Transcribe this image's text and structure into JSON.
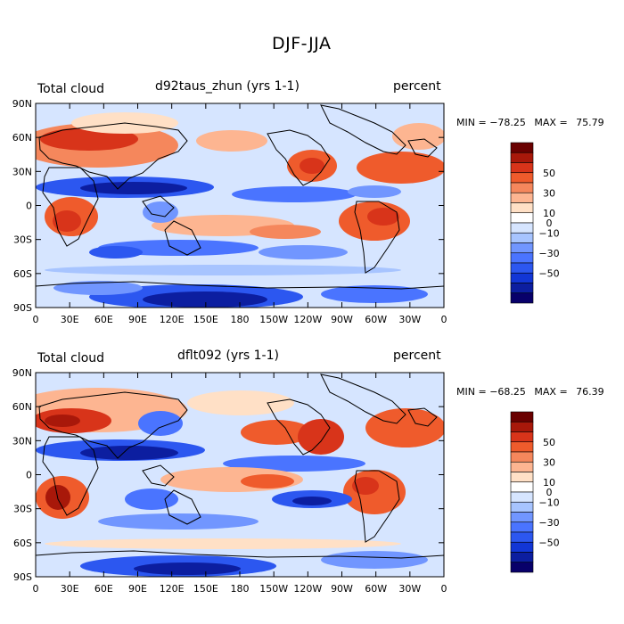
{
  "figure": {
    "title": "DJF-JJA"
  },
  "colorbar_scale": {
    "colors": [
      "#08006a",
      "#0c1ea0",
      "#1236d6",
      "#2c57f0",
      "#4a74ff",
      "#7196ff",
      "#a7c4ff",
      "#d6e5ff",
      "#ffffff",
      "#ffe0c6",
      "#fdb591",
      "#f5875c",
      "#ef5b2c",
      "#d8341a",
      "#a8180a",
      "#6a0000"
    ],
    "labels": [
      "50",
      "30",
      "10",
      "0",
      "−10",
      "−30",
      "−50"
    ],
    "label_values": [
      50,
      30,
      10,
      0,
      -10,
      -30,
      -50
    ],
    "range": [
      -80,
      80
    ]
  },
  "panels": [
    {
      "label_left": "Total cloud",
      "label_center": "d92taus_zhun (yrs 1-1)",
      "label_right": "percent",
      "min_label": "MIN =",
      "min_value": "−78.25",
      "max_label": "MAX =",
      "max_value": "75.79",
      "lat_ticks": [
        "90N",
        "60N",
        "30N",
        "0",
        "30S",
        "60S",
        "90S"
      ],
      "lon_ticks": [
        "0",
        "30E",
        "60E",
        "90E",
        "120E",
        "150E",
        "180",
        "150W",
        "120W",
        "90W",
        "60W",
        "30W",
        "0"
      ]
    },
    {
      "label_left": "Total cloud",
      "label_center": "dflt092 (yrs 1-1)",
      "label_right": "percent",
      "min_label": "MIN =",
      "min_value": "−68.25",
      "max_label": "MAX =",
      "max_value": "76.39",
      "lat_ticks": [
        "90N",
        "60N",
        "30N",
        "0",
        "30S",
        "60S",
        "90S"
      ],
      "lon_ticks": [
        "0",
        "30E",
        "60E",
        "90E",
        "120E",
        "150E",
        "180",
        "150W",
        "120W",
        "90W",
        "60W",
        "30W",
        "0"
      ]
    }
  ]
}
